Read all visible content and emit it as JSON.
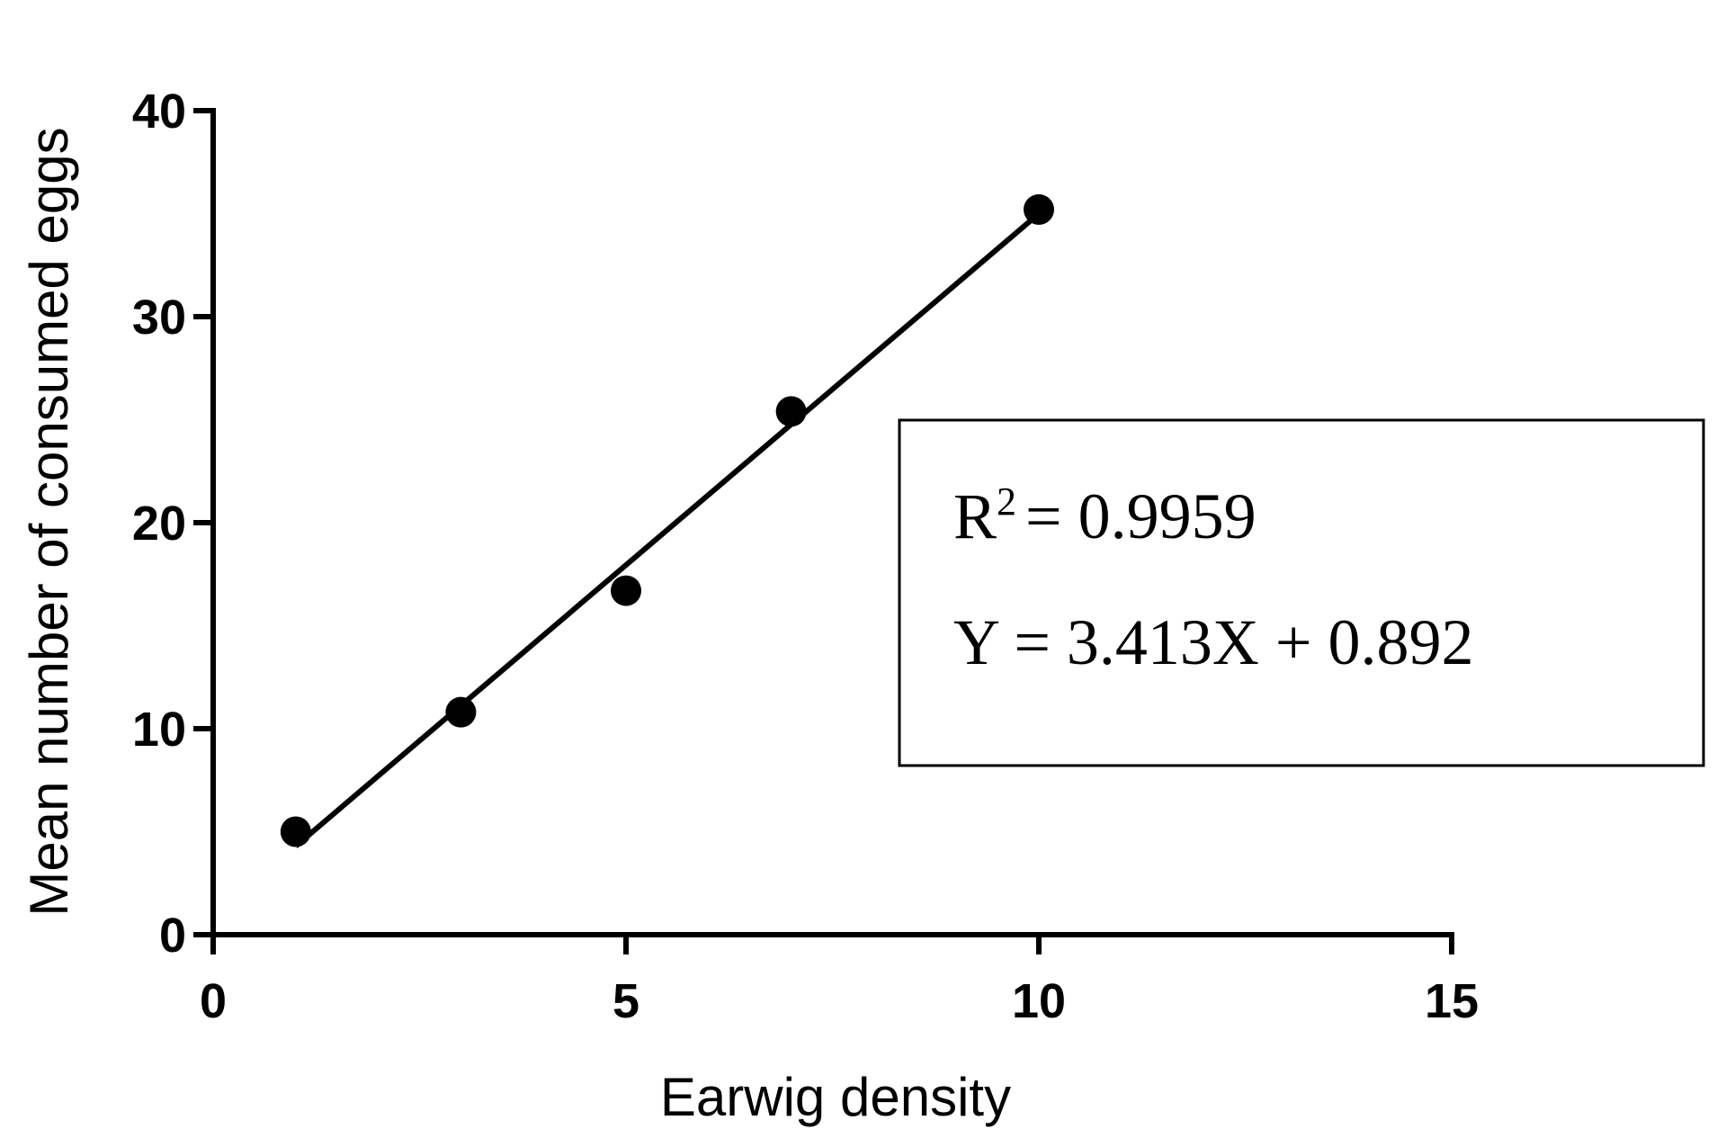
{
  "chart_data": {
    "type": "scatter",
    "x_label": "Earwig density",
    "y_label": "Mean number of consumed eggs",
    "x": [
      1,
      3,
      5,
      7,
      10
    ],
    "values": [
      5.0,
      10.8,
      16.7,
      25.4,
      35.2
    ],
    "color": "#000000",
    "fit_line": {
      "x": [
        1,
        10
      ],
      "values": [
        4.3,
        35.0
      ]
    },
    "xlim": [
      0,
      15
    ],
    "xticks": [
      0,
      5,
      10,
      15
    ],
    "ylim": [
      0,
      40
    ],
    "yticks": [
      0,
      10,
      20,
      30,
      40
    ],
    "grid": false,
    "annotation": {
      "r_squared": [
        "R",
        "2",
        "= 0.9959"
      ],
      "equation": "Y = 3.413X + 0.892"
    }
  }
}
